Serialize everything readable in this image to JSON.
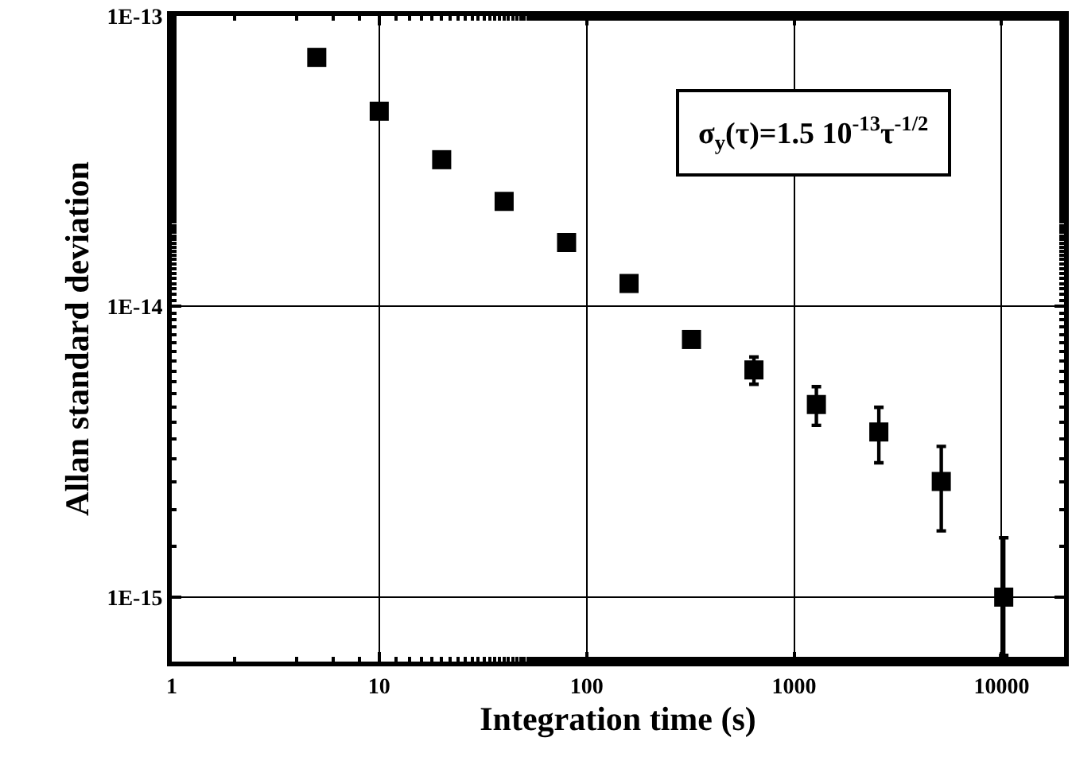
{
  "chart_data": {
    "type": "scatter",
    "xlabel": "Integration time (s)",
    "ylabel": "Allan standard deviation",
    "annotations": [
      "σ$_{y}$(τ)=1.5 10$^{-13}$τ$^{-1/2}$"
    ],
    "x": [
      5,
      10,
      20,
      40,
      80,
      160,
      320,
      640,
      1280,
      2560,
      5120,
      10240
    ],
    "series": [
      {
        "color": "#000000",
        "values": [
          7.2e-14,
          4.7e-14,
          3.2e-14,
          2.3e-14,
          1.66e-14,
          1.2e-14,
          7.7e-15,
          6.05e-15,
          4.6e-15,
          3.7e-15,
          2.5e-15,
          1e-15
        ],
        "errors": [
          null,
          null,
          null,
          null,
          null,
          null,
          null,
          [
            5.4e-15,
            6.7e-15
          ],
          [
            3.9e-15,
            5.3e-15
          ],
          [
            2.9e-15,
            4.5e-15
          ],
          [
            1.69e-15,
            3.3e-15
          ],
          [
            6.3e-16,
            1.6e-15
          ]
        ]
      }
    ],
    "log": "xy",
    "marker": "square",
    "grid": true,
    "xlim": [
      1,
      20000
    ],
    "xticks": [
      1,
      10,
      100,
      1000,
      10000
    ],
    "ylim": [
      6e-16,
      1e-13
    ],
    "yticks": [
      {
        "value": 1e-15,
        "label": "1E-15"
      },
      {
        "value": 1e-14,
        "label": "1E-14"
      },
      {
        "value": 1e-13,
        "label": "1E-13"
      }
    ]
  }
}
